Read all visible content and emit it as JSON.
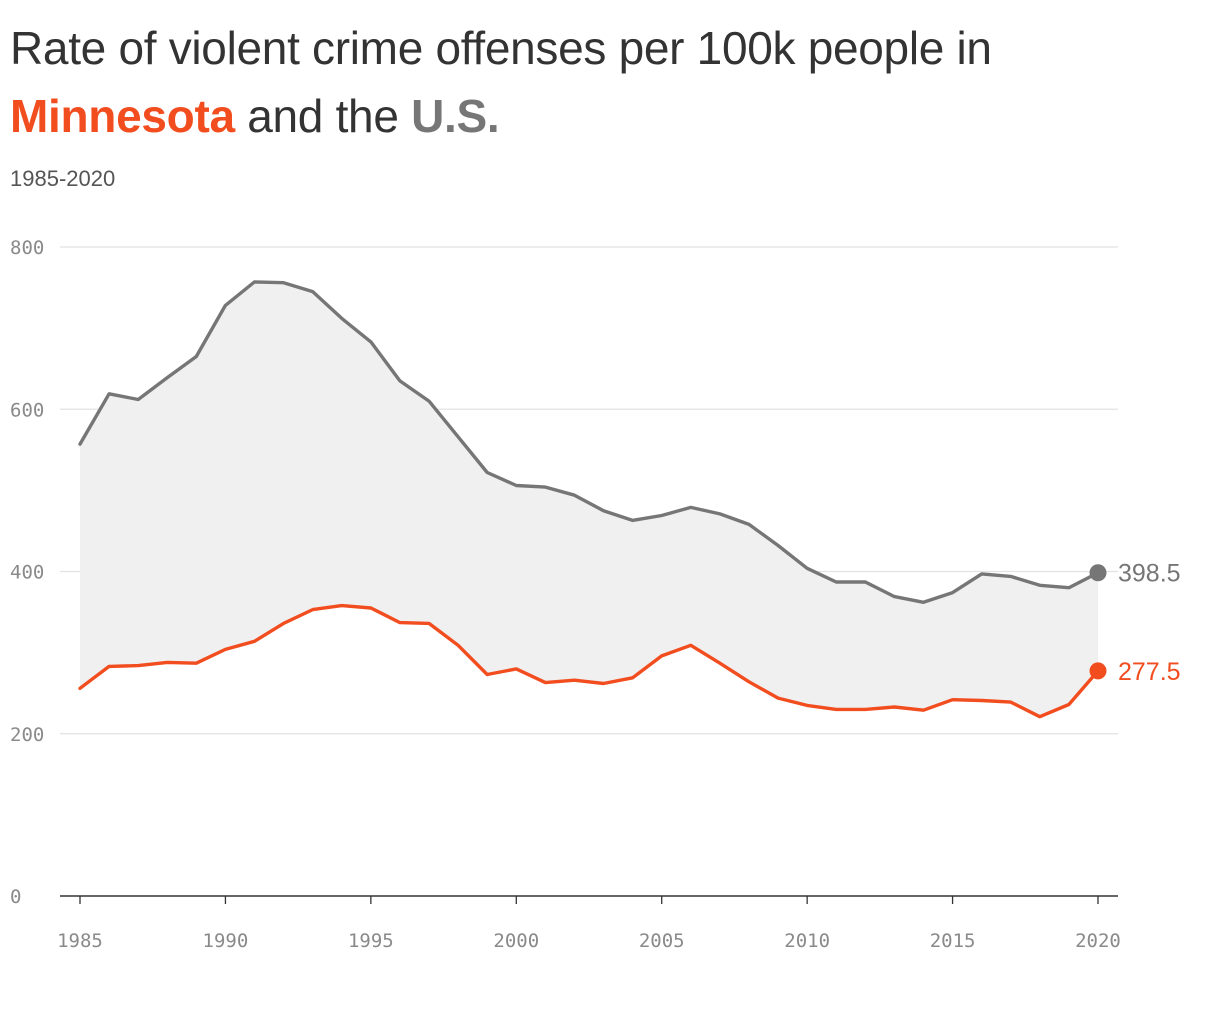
{
  "header": {
    "title_part1": "Rate of violent crime offenses per 100k people in",
    "title_mn": "Minnesota",
    "title_part2": " and the ",
    "title_us": "U.S.",
    "subtitle": "1985-2020"
  },
  "colors": {
    "minnesota": "#f24d1f",
    "us": "#767676",
    "gap_fill": "#f0f0f0",
    "grid": "#e2e2e2",
    "axis": "#333333"
  },
  "chart_data": {
    "type": "line",
    "title": "Rate of violent crime offenses per 100k people in Minnesota and the U.S.",
    "subtitle": "1985-2020",
    "xlabel": "",
    "ylabel": "",
    "xlim": [
      1985,
      2020
    ],
    "ylim": [
      0,
      800
    ],
    "xticks": [
      1985,
      1990,
      1995,
      2000,
      2005,
      2010,
      2015,
      2020
    ],
    "yticks": [
      0,
      200,
      400,
      600,
      800
    ],
    "grid": true,
    "legend": "none",
    "x": [
      1985,
      1986,
      1987,
      1988,
      1989,
      1990,
      1991,
      1992,
      1993,
      1994,
      1995,
      1996,
      1997,
      1998,
      1999,
      2000,
      2001,
      2002,
      2003,
      2004,
      2005,
      2006,
      2007,
      2008,
      2009,
      2010,
      2011,
      2012,
      2013,
      2014,
      2015,
      2016,
      2017,
      2018,
      2019,
      2020
    ],
    "series": [
      {
        "name": "U.S.",
        "end_label": "398.5",
        "values": [
          557,
          619,
          612,
          639,
          665,
          728,
          757,
          756,
          745,
          712,
          683,
          635,
          610,
          566,
          522,
          506,
          504,
          494,
          475,
          463,
          469,
          479,
          471,
          458,
          432,
          404,
          387,
          387,
          369,
          362,
          374,
          397,
          394,
          383,
          380,
          398.5
        ]
      },
      {
        "name": "Minnesota",
        "end_label": "277.5",
        "values": [
          256,
          283,
          284,
          288,
          287,
          304,
          314,
          336,
          353,
          358,
          355,
          337,
          336,
          309,
          273,
          280,
          263,
          266,
          262,
          269,
          296,
          309,
          287,
          264,
          244,
          235,
          230,
          230,
          233,
          229,
          242,
          241,
          239,
          221,
          236,
          277.5
        ]
      }
    ]
  }
}
